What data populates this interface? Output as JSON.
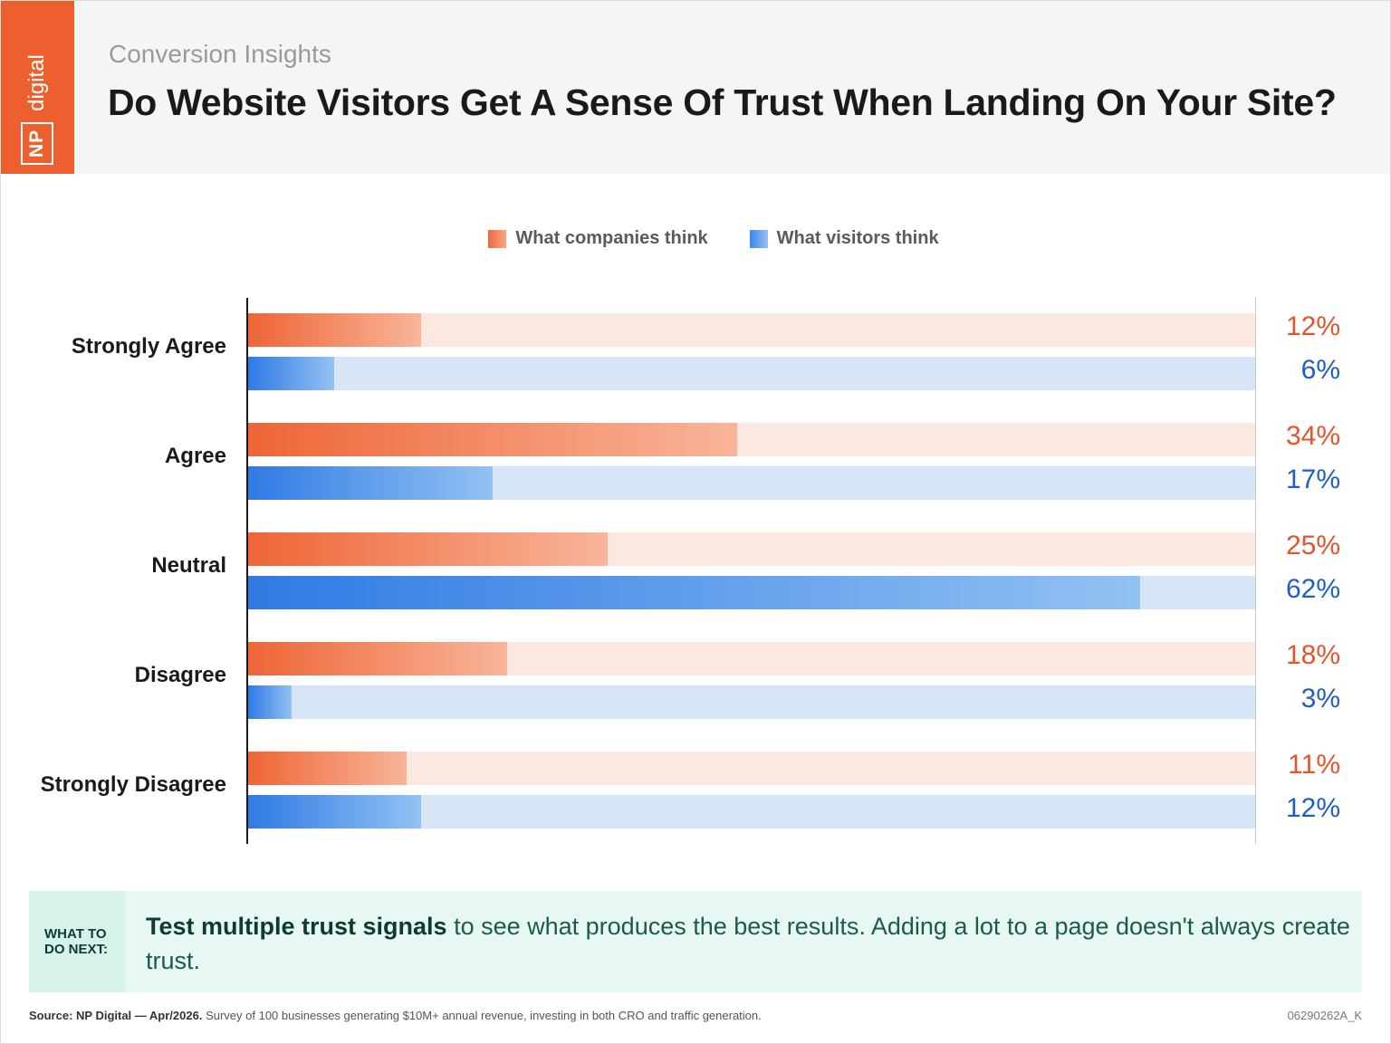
{
  "header": {
    "logo_np": "NP",
    "logo_digital": "digital",
    "subtitle": "Conversion Insights",
    "title": "Do Website Visitors Get A Sense Of Trust When Landing On Your Site?"
  },
  "colors": {
    "brand": "#ee5f2f",
    "companies": "#ee6536",
    "visitors": "#2f7ae4"
  },
  "chart_data": {
    "type": "bar",
    "orientation": "horizontal",
    "title": "Do Website Visitors Get A Sense Of Trust When Landing On Your Site?",
    "categories": [
      "Strongly Agree",
      "Agree",
      "Neutral",
      "Disagree",
      "Strongly Disagree"
    ],
    "series": [
      {
        "name": "What companies think",
        "values": [
          12,
          34,
          25,
          18,
          11
        ],
        "labels": [
          "12%",
          "34%",
          "25%",
          "18%",
          "11%"
        ]
      },
      {
        "name": "What visitors think",
        "values": [
          6,
          17,
          62,
          3,
          12
        ],
        "labels": [
          "6%",
          "17%",
          "62%",
          "3%",
          "12%"
        ]
      }
    ],
    "xlim": [
      0,
      70
    ],
    "unit": "%",
    "legend": "top-center",
    "grid": false
  },
  "callout": {
    "tag_line1": "WHAT TO",
    "tag_line2": "DO NEXT:",
    "bold": "Test multiple trust signals",
    "text": " to see what produces the best results. Adding a lot to a page doesn't always create trust."
  },
  "footer": {
    "source_bold": "Source: NP Digital — Apr/2026.",
    "source_text": " Survey of 100 businesses generating $10M+ annual revenue, investing in both CRO and traffic generation.",
    "code": "06290262A_K"
  }
}
